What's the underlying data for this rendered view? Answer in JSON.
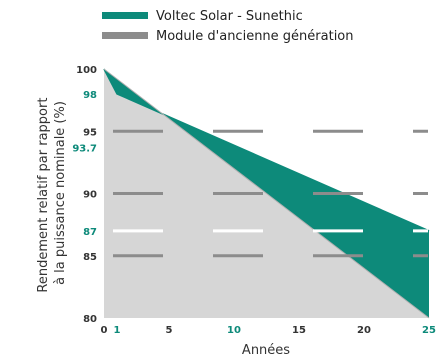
{
  "chart_data": {
    "type": "area",
    "xlabel": "Années",
    "ylabel": [
      "Rendement relatif par rapport",
      "à la puissance nominale (%)"
    ],
    "xlim": [
      0,
      25
    ],
    "ylim": [
      80,
      100
    ],
    "x_ticks": [
      {
        "label": "0",
        "value": 0,
        "highlight": false
      },
      {
        "label": "1",
        "value": 1,
        "highlight": true
      },
      {
        "label": "5",
        "value": 5,
        "highlight": false
      },
      {
        "label": "10",
        "value": 10,
        "highlight": true
      },
      {
        "label": "15",
        "value": 15,
        "highlight": false
      },
      {
        "label": "20",
        "value": 20,
        "highlight": false
      },
      {
        "label": "25",
        "value": 25,
        "highlight": true
      }
    ],
    "y_ticks": [
      {
        "label": "100",
        "value": 100,
        "highlight": false
      },
      {
        "label": "98",
        "value": 98,
        "highlight": true
      },
      {
        "label": "95",
        "value": 95,
        "highlight": false
      },
      {
        "label": "93.7",
        "value": 93.7,
        "highlight": true
      },
      {
        "label": "90",
        "value": 90,
        "highlight": false
      },
      {
        "label": "87",
        "value": 87,
        "highlight": true
      },
      {
        "label": "85",
        "value": 85,
        "highlight": false
      },
      {
        "label": "80",
        "value": 80,
        "highlight": false
      }
    ],
    "series": [
      {
        "name": "Voltec Solar - Sunethic",
        "color": "#0d8a7a",
        "x": [
          0,
          1,
          25
        ],
        "y": [
          100,
          98,
          87
        ]
      },
      {
        "name": "Module d'ancienne génération",
        "color": "#8c8c8c",
        "x": [
          0,
          25
        ],
        "y": [
          100,
          80
        ]
      }
    ],
    "gridlines": [
      {
        "y": 95,
        "style": "dashed",
        "color": "#8c8c8c"
      },
      {
        "y": 90,
        "style": "dashed",
        "color": "#8c8c8c"
      },
      {
        "y": 87,
        "style": "dashed",
        "color": "#ffffff"
      },
      {
        "y": 85,
        "style": "dashed",
        "color": "#8c8c8c"
      }
    ],
    "legend_position": "top"
  }
}
